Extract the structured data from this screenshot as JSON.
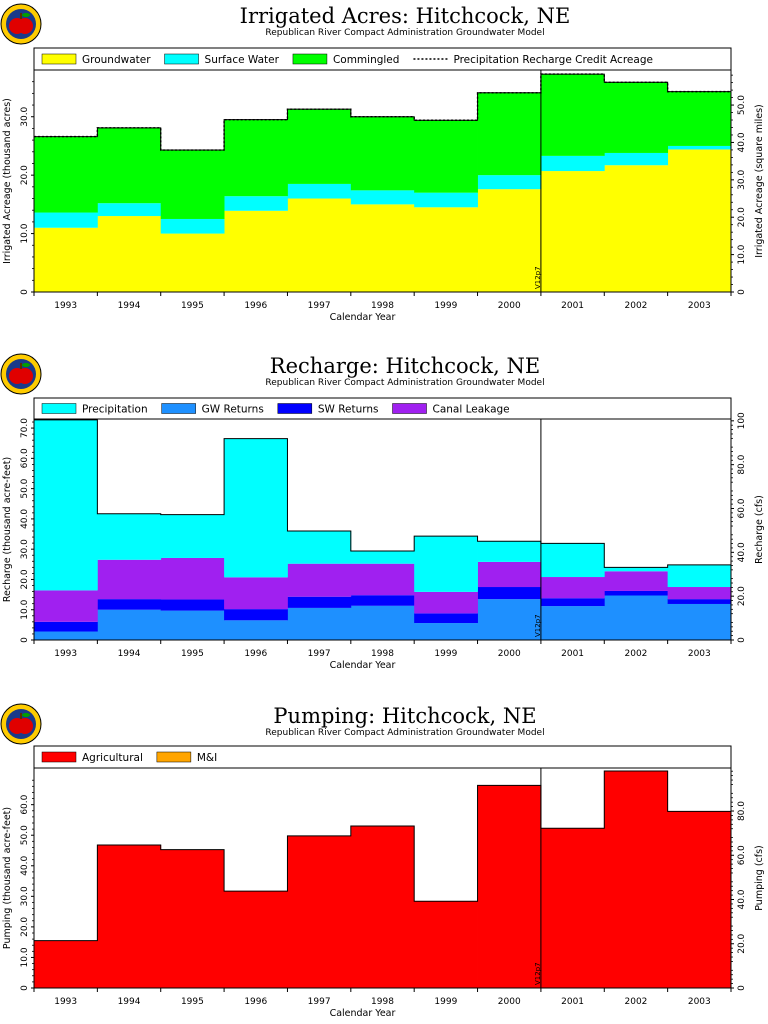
{
  "chart_data": [
    {
      "type": "area",
      "title": "Irrigated Acres: Hitchcock, NE",
      "subtitle": "Republican River Compact Administration Groundwater Model",
      "xlabel": "Calendar Year",
      "ylabel": "Irrigated Acreage (thousand acres)",
      "y2label": "Irrigated Acreage (square miles)",
      "categories": [
        "1993",
        "1994",
        "1995",
        "1996",
        "1997",
        "1998",
        "1999",
        "2000",
        "2001",
        "2002",
        "2003"
      ],
      "ylim": [
        0,
        38
      ],
      "yticks": [
        0,
        10.0,
        20.0,
        30.0
      ],
      "y2lim": [
        0,
        59.375
      ],
      "y2ticks": [
        0,
        10.0,
        20.0,
        30.0,
        40.0,
        50.0
      ],
      "stacked": true,
      "series": [
        {
          "name": "Groundwater",
          "color": "#ffff00",
          "values": [
            11.0,
            13.0,
            10.0,
            13.9,
            16.0,
            15.0,
            14.5,
            17.6,
            20.7,
            21.7,
            24.4
          ]
        },
        {
          "name": "Surface Water",
          "color": "#00ffff",
          "values": [
            2.6,
            2.2,
            2.5,
            2.5,
            2.5,
            2.4,
            2.5,
            2.4,
            2.6,
            2.1,
            0.6
          ]
        },
        {
          "name": "Commingled",
          "color": "#00ff00",
          "values": [
            13.0,
            12.9,
            11.8,
            13.1,
            12.8,
            12.6,
            12.4,
            14.1,
            14.0,
            12.1,
            9.3
          ]
        }
      ],
      "line_series": {
        "name": "Precipitation Recharge Credit Acreage",
        "style": "dashed",
        "values": [
          26.6,
          28.1,
          24.3,
          29.5,
          31.3,
          30.0,
          29.4,
          34.1,
          37.3,
          35.9,
          34.3
        ]
      },
      "marker": {
        "label": "V12p7",
        "position_year": "2000/2001"
      }
    },
    {
      "type": "area",
      "title": "Recharge: Hitchcock, NE",
      "subtitle": "Republican River Compact Administration Groundwater Model",
      "xlabel": "Calendar Year",
      "ylabel": "Recharge (thousand acre-feet)",
      "y2label": "Recharge (cfs)",
      "categories": [
        "1993",
        "1994",
        "1995",
        "1996",
        "1997",
        "1998",
        "1999",
        "2000",
        "2001",
        "2002",
        "2003"
      ],
      "ylim": [
        0,
        73
      ],
      "yticks": [
        0,
        10.0,
        20.0,
        30.0,
        40.0,
        50.0,
        60.0,
        70.0
      ],
      "y2lim": [
        0,
        100.83
      ],
      "y2ticks": [
        0,
        20.0,
        40.0,
        60.0,
        80.0,
        100
      ],
      "stacked": true,
      "series": [
        {
          "name": "GW Returns",
          "color": "#1e90ff",
          "values": [
            2.8,
            10.0,
            9.7,
            6.5,
            10.6,
            11.3,
            5.6,
            13.5,
            11.2,
            14.7,
            11.9
          ]
        },
        {
          "name": "SW Returns",
          "color": "#0000ff",
          "values": [
            3.2,
            3.5,
            3.7,
            3.7,
            3.7,
            3.5,
            3.2,
            4.0,
            2.6,
            1.5,
            1.6
          ]
        },
        {
          "name": "Canal Leakage",
          "color": "#a020f0",
          "values": [
            10.4,
            13.0,
            13.7,
            10.5,
            10.9,
            10.4,
            7.1,
            8.3,
            7.0,
            6.5,
            4.0
          ]
        },
        {
          "name": "Precipitation",
          "color": "#00ffff",
          "values": [
            56.3,
            15.2,
            14.3,
            45.8,
            10.8,
            4.2,
            18.4,
            6.8,
            11.1,
            1.3,
            7.3
          ]
        }
      ],
      "marker": {
        "label": "V12p7",
        "position_year": "2000/2001"
      }
    },
    {
      "type": "area",
      "title": "Pumping: Hitchcock, NE",
      "subtitle": "Republican River Compact Administration Groundwater Model",
      "xlabel": "Calendar Year",
      "ylabel": "Pumping (thousand acre-feet)",
      "y2label": "Pumping (cfs)",
      "categories": [
        "1993",
        "1994",
        "1995",
        "1996",
        "1997",
        "1998",
        "1999",
        "2000",
        "2001",
        "2002",
        "2003"
      ],
      "ylim": [
        0,
        72
      ],
      "yticks": [
        0,
        10.0,
        20.0,
        30.0,
        40.0,
        50.0,
        60.0
      ],
      "y2lim": [
        0,
        99.45
      ],
      "y2ticks": [
        0,
        20.0,
        40.0,
        60.0,
        80.0
      ],
      "stacked": true,
      "series": [
        {
          "name": "Agricultural",
          "color": "#ff0000",
          "values": [
            15.5,
            46.8,
            45.3,
            31.7,
            49.8,
            53.0,
            28.4,
            66.3,
            52.3,
            71.0,
            57.8
          ]
        },
        {
          "name": "M&I",
          "color": "#ffa500",
          "values": [
            0,
            0,
            0,
            0,
            0,
            0,
            0,
            0,
            0,
            0,
            0
          ]
        }
      ],
      "marker": {
        "label": "V12p7",
        "position_year": "2000/2001"
      }
    }
  ]
}
